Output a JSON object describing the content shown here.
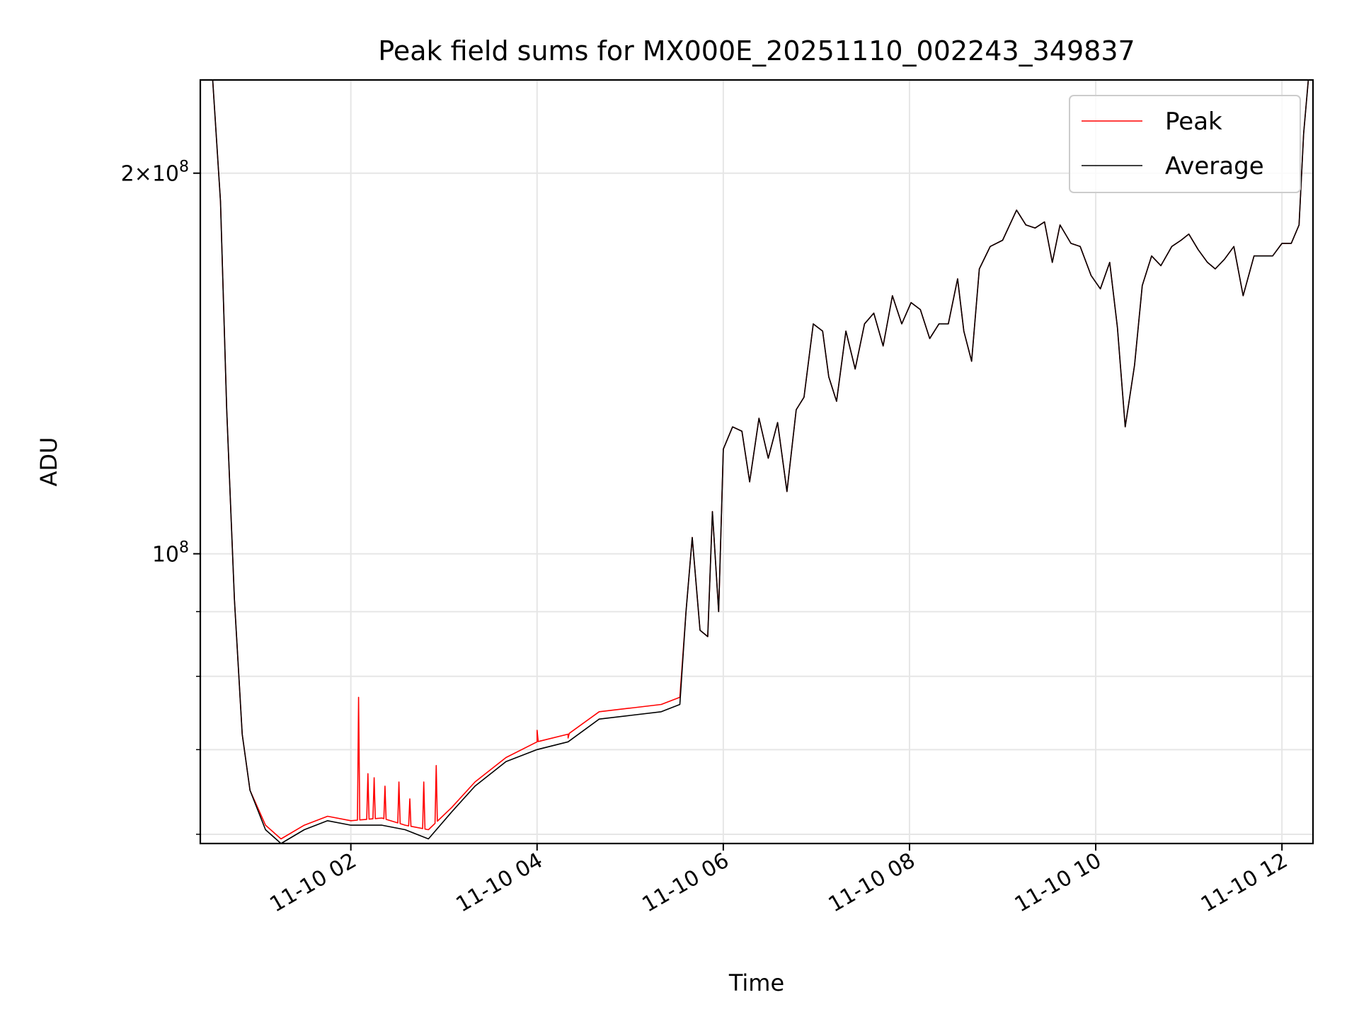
{
  "chart_data": {
    "type": "line",
    "title": "Peak field sums for MX000E_20251110_002243_349837",
    "xlabel": "Time",
    "ylabel": "ADU",
    "yscale": "log",
    "grid": true,
    "legend_position": "top-right",
    "xlim": [
      "2025-11-10 00:23",
      "2025-11-10 12:20"
    ],
    "ylim": [
      59000000,
      237000000
    ],
    "x_ticks": [
      "2025-11-10 02:00",
      "2025-11-10 04:00",
      "2025-11-10 06:00",
      "2025-11-10 08:00",
      "2025-11-10 10:00",
      "2025-11-10 12:00"
    ],
    "x_tick_labels": [
      "11-10 02",
      "11-10 04",
      "11-10 06",
      "11-10 08",
      "11-10 10",
      "11-10 12"
    ],
    "y_ticks": [
      100000000,
      200000000
    ],
    "y_tick_labels": [
      "10^8",
      "2×10^8"
    ],
    "y_minor_ticks": [
      60000000,
      70000000,
      80000000,
      90000000
    ],
    "x": [
      "2025-11-10 00:23",
      "2025-11-10 00:31",
      "2025-11-10 00:36",
      "2025-11-10 00:40",
      "2025-11-10 00:45",
      "2025-11-10 00:50",
      "2025-11-10 00:55",
      "2025-11-10 01:05",
      "2025-11-10 01:15",
      "2025-11-10 01:30",
      "2025-11-10 01:45",
      "2025-11-10 02:00",
      "2025-11-10 02:20",
      "2025-11-10 02:35",
      "2025-11-10 02:50",
      "2025-11-10 03:05",
      "2025-11-10 03:20",
      "2025-11-10 03:40",
      "2025-11-10 04:00",
      "2025-11-10 04:20",
      "2025-11-10 04:40",
      "2025-11-10 05:00",
      "2025-11-10 05:20",
      "2025-11-10 05:32",
      "2025-11-10 05:36",
      "2025-11-10 05:40",
      "2025-11-10 05:45",
      "2025-11-10 05:50",
      "2025-11-10 05:53",
      "2025-11-10 05:57",
      "2025-11-10 06:00",
      "2025-11-10 06:06",
      "2025-11-10 06:12",
      "2025-11-10 06:17",
      "2025-11-10 06:23",
      "2025-11-10 06:29",
      "2025-11-10 06:35",
      "2025-11-10 06:41",
      "2025-11-10 06:47",
      "2025-11-10 06:52",
      "2025-11-10 06:58",
      "2025-11-10 07:04",
      "2025-11-10 07:08",
      "2025-11-10 07:13",
      "2025-11-10 07:19",
      "2025-11-10 07:25",
      "2025-11-10 07:31",
      "2025-11-10 07:37",
      "2025-11-10 07:43",
      "2025-11-10 07:49",
      "2025-11-10 07:55",
      "2025-11-10 08:01",
      "2025-11-10 08:07",
      "2025-11-10 08:13",
      "2025-11-10 08:19",
      "2025-11-10 08:25",
      "2025-11-10 08:31",
      "2025-11-10 08:35",
      "2025-11-10 08:40",
      "2025-11-10 08:45",
      "2025-11-10 08:52",
      "2025-11-10 09:00",
      "2025-11-10 09:09",
      "2025-11-10 09:15",
      "2025-11-10 09:21",
      "2025-11-10 09:27",
      "2025-11-10 09:32",
      "2025-11-10 09:37",
      "2025-11-10 09:44",
      "2025-11-10 09:50",
      "2025-11-10 09:57",
      "2025-11-10 10:03",
      "2025-11-10 10:09",
      "2025-11-10 10:14",
      "2025-11-10 10:19",
      "2025-11-10 10:25",
      "2025-11-10 10:30",
      "2025-11-10 10:36",
      "2025-11-10 10:42",
      "2025-11-10 10:49",
      "2025-11-10 10:55",
      "2025-11-10 11:00",
      "2025-11-10 11:06",
      "2025-11-10 11:12",
      "2025-11-10 11:17",
      "2025-11-10 11:23",
      "2025-11-10 11:29",
      "2025-11-10 11:35",
      "2025-11-10 11:42",
      "2025-11-10 11:48",
      "2025-11-10 11:54",
      "2025-11-10 12:00",
      "2025-11-10 12:06",
      "2025-11-10 12:11",
      "2025-11-10 12:14",
      "2025-11-10 12:17",
      "2025-11-10 12:20"
    ],
    "series": [
      {
        "name": "Peak",
        "color": "#ff0000",
        "values": [
          237000000,
          237000000,
          190000000,
          130000000,
          92000000,
          72000000,
          65000000,
          61000000,
          59500000,
          61000000,
          62000000,
          61500000,
          61800000,
          61000000,
          60500000,
          63000000,
          66000000,
          69000000,
          71000000,
          72000000,
          75000000,
          75500000,
          76000000,
          77000000,
          90000000,
          103000000,
          87000000,
          86000000,
          108000000,
          90000000,
          121000000,
          126000000,
          125000000,
          114000000,
          128000000,
          119000000,
          127000000,
          112000000,
          130000000,
          133000000,
          152000000,
          150000000,
          138000000,
          132000000,
          150000000,
          140000000,
          152000000,
          155000000,
          146000000,
          160000000,
          152000000,
          158000000,
          156000000,
          148000000,
          152000000,
          152000000,
          165000000,
          150000000,
          142000000,
          168000000,
          175000000,
          177000000,
          187000000,
          182000000,
          181000000,
          183000000,
          170000000,
          182000000,
          176000000,
          175000000,
          166000000,
          162000000,
          170000000,
          151000000,
          126000000,
          141000000,
          163000000,
          172000000,
          169000000,
          175000000,
          177000000,
          179000000,
          174000000,
          170000000,
          168000000,
          171000000,
          175000000,
          160000000,
          172000000,
          172000000,
          172000000,
          176000000,
          176000000,
          182000000,
          215000000,
          237000000,
          237000000
        ]
      },
      {
        "name": "Average",
        "color": "#000000",
        "values": [
          237000000,
          237000000,
          190000000,
          130000000,
          92000000,
          72000000,
          65000000,
          60500000,
          59000000,
          60500000,
          61500000,
          61000000,
          61000000,
          60500000,
          59500000,
          62500000,
          65500000,
          68500000,
          70000000,
          71000000,
          74000000,
          74500000,
          75000000,
          76000000,
          90000000,
          103000000,
          87000000,
          86000000,
          108000000,
          90000000,
          121000000,
          126000000,
          125000000,
          114000000,
          128000000,
          119000000,
          127000000,
          112000000,
          130000000,
          133000000,
          152000000,
          150000000,
          138000000,
          132000000,
          150000000,
          140000000,
          152000000,
          155000000,
          146000000,
          160000000,
          152000000,
          158000000,
          156000000,
          148000000,
          152000000,
          152000000,
          165000000,
          150000000,
          142000000,
          168000000,
          175000000,
          177000000,
          187000000,
          182000000,
          181000000,
          183000000,
          170000000,
          182000000,
          176000000,
          175000000,
          166000000,
          162000000,
          170000000,
          151000000,
          126000000,
          141000000,
          163000000,
          172000000,
          169000000,
          175000000,
          177000000,
          179000000,
          174000000,
          170000000,
          168000000,
          171000000,
          175000000,
          160000000,
          172000000,
          172000000,
          172000000,
          176000000,
          176000000,
          182000000,
          215000000,
          237000000,
          237000000
        ]
      }
    ],
    "spikes": {
      "series": "Peak",
      "x": [
        "2025-11-10 02:05",
        "2025-11-10 02:11",
        "2025-11-10 02:15",
        "2025-11-10 02:22",
        "2025-11-10 02:31",
        "2025-11-10 02:38",
        "2025-11-10 02:47",
        "2025-11-10 02:55",
        "2025-11-10 04:00",
        "2025-11-10 04:20",
        "2025-11-10 05:00"
      ],
      "values": [
        77000000,
        67000000,
        66500000,
        65500000,
        66000000,
        64000000,
        66000000,
        68000000,
        72500000,
        71500000,
        75500000
      ]
    }
  }
}
